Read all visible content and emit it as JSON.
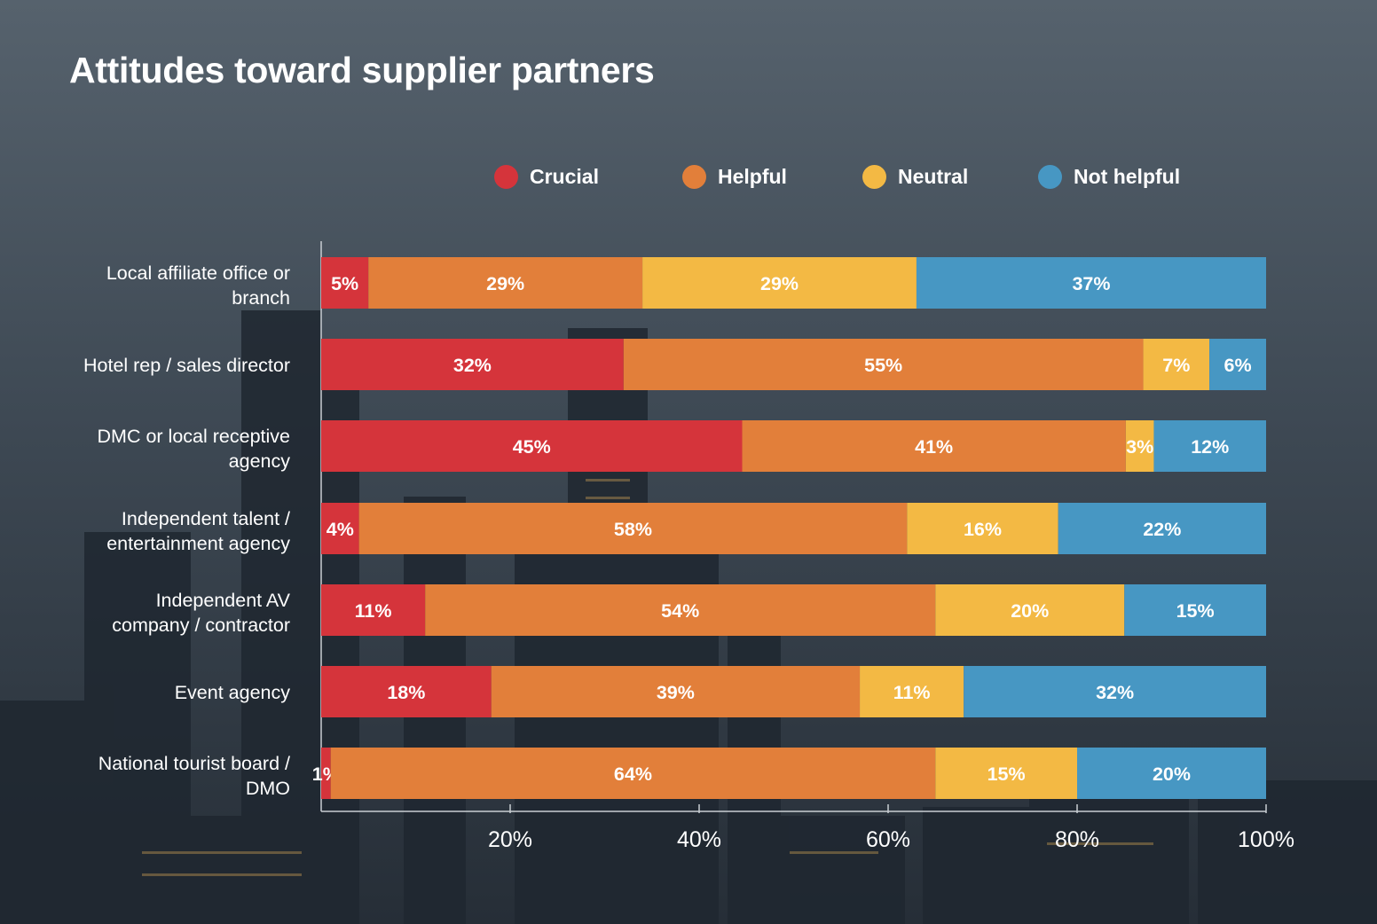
{
  "chart_data": {
    "type": "bar",
    "orientation": "horizontal",
    "stacked": true,
    "title": "Attitudes toward supplier partners",
    "categories": [
      "Local affiliate office or branch",
      "Hotel rep / sales director",
      "DMC or local receptive agency",
      "Independent talent / entertainment agency",
      "Independent AV company / contractor",
      "Event agency",
      "National tourist board / DMO"
    ],
    "series": [
      {
        "name": "Crucial",
        "color": "#d5343b",
        "values": [
          5,
          32,
          45,
          4,
          11,
          18,
          1
        ]
      },
      {
        "name": "Helpful",
        "color": "#e27f3a",
        "values": [
          29,
          55,
          41,
          58,
          54,
          39,
          64
        ]
      },
      {
        "name": "Neutral",
        "color": "#f3b944",
        "values": [
          29,
          7,
          3,
          16,
          20,
          11,
          15
        ]
      },
      {
        "name": "Not helpful",
        "color": "#4797c3",
        "values": [
          37,
          6,
          12,
          22,
          15,
          32,
          20
        ]
      }
    ],
    "xlim": [
      0,
      100
    ],
    "xticks": [
      "20%",
      "40%",
      "60%",
      "80%",
      "100%"
    ],
    "xtick_values": [
      20,
      40,
      60,
      80,
      100
    ],
    "legend_position": "top",
    "grid": false
  }
}
